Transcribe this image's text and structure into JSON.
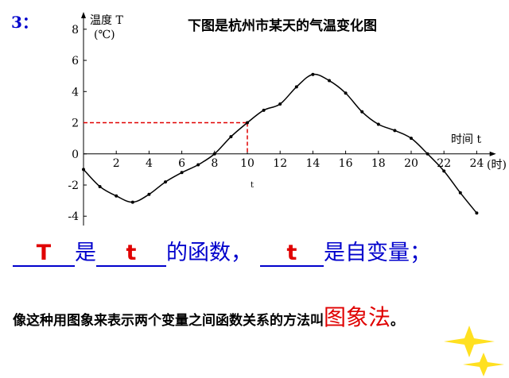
{
  "number": "3：",
  "chart_data": {
    "type": "line",
    "title": "下图是杭州市某天的气温变化图",
    "y_label": "温度 T",
    "y_unit": "(℃)",
    "x_label": "时间 t",
    "x_unit": "(时)",
    "x": [
      0,
      1,
      2,
      3,
      4,
      5,
      6,
      7,
      8,
      9,
      10,
      11,
      12,
      13,
      14,
      15,
      16,
      17,
      18,
      19,
      20,
      21,
      22,
      23,
      24
    ],
    "series": [
      {
        "name": "温度",
        "color": "#000000",
        "values": [
          -1.0,
          -2.1,
          -2.7,
          -3.1,
          -2.6,
          -1.8,
          -1.2,
          -0.7,
          0,
          1.1,
          2,
          2.8,
          3.2,
          4.3,
          5.1,
          4.7,
          3.9,
          2.7,
          1.9,
          1.5,
          1.0,
          0,
          -1.1,
          -2.5,
          -3.8
        ]
      }
    ],
    "xlim": [
      0,
      24.5
    ],
    "ylim": [
      -4.6,
      8.5
    ],
    "xticks": [
      2,
      4,
      6,
      8,
      10,
      12,
      14,
      16,
      18,
      20,
      22,
      24
    ],
    "yticks": [
      -4,
      -2,
      0,
      2,
      4,
      6,
      8
    ],
    "reference": {
      "x": 10,
      "y": 2,
      "color": "#e00000",
      "label": "t"
    }
  },
  "statement": {
    "blank1": "T",
    "text1": "是",
    "blank2": "t",
    "text2": "的函数，",
    "blank3": "t",
    "text3": "是自变量；"
  },
  "conclusion": {
    "text": "像这种用图象来表示两个变量之间函数关系的方法叫",
    "term": "图象法",
    "end": "。"
  }
}
